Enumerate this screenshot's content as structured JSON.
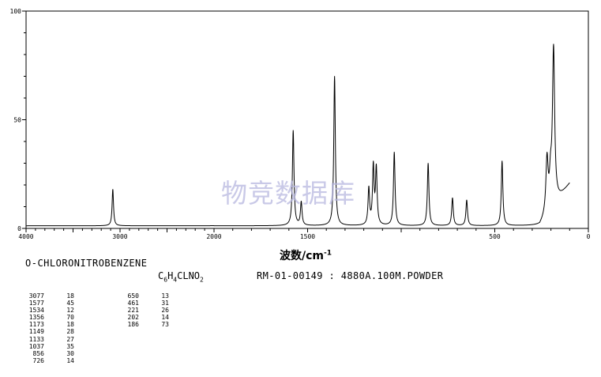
{
  "chart_data": {
    "type": "line",
    "xlim": [
      4000,
      0
    ],
    "ylim": [
      0,
      100
    ],
    "x_ticks": [
      "4000",
      "3000",
      "2000",
      "1500",
      "500",
      "0"
    ],
    "y_ticks": [
      "100",
      "50",
      "0"
    ],
    "xlabel": "波数/cm",
    "xlabel_sup": "-1",
    "baseline": 1.2,
    "peaks": [
      {
        "x": 3077,
        "y": 18
      },
      {
        "x": 1577,
        "y": 45
      },
      {
        "x": 1534,
        "y": 12
      },
      {
        "x": 1356,
        "y": 70
      },
      {
        "x": 1173,
        "y": 18
      },
      {
        "x": 1149,
        "y": 28
      },
      {
        "x": 1133,
        "y": 27
      },
      {
        "x": 1037,
        "y": 35
      },
      {
        "x": 856,
        "y": 30
      },
      {
        "x": 726,
        "y": 14
      },
      {
        "x": 650,
        "y": 13
      },
      {
        "x": 461,
        "y": 31
      },
      {
        "x": 221,
        "y": 26
      },
      {
        "x": 202,
        "y": 14
      },
      {
        "x": 186,
        "y": 73
      }
    ]
  },
  "watermark": "物竞数据库",
  "compound_name": "O-CHLORONITROBENZENE",
  "formula": {
    "c": "C",
    "c_n": "6",
    "h": "H",
    "h_n": "4",
    "rest": "CLNO",
    "o_n": "2"
  },
  "reference": "RM-01-00149 : 4880A.100M.POWDER",
  "peak_table_a": [
    {
      "wavenumber": "3077",
      "intensity": "18"
    },
    {
      "wavenumber": "1577",
      "intensity": "45"
    },
    {
      "wavenumber": "1534",
      "intensity": "12"
    },
    {
      "wavenumber": "1356",
      "intensity": "70"
    },
    {
      "wavenumber": "1173",
      "intensity": "18"
    },
    {
      "wavenumber": "1149",
      "intensity": "28"
    },
    {
      "wavenumber": "1133",
      "intensity": "27"
    },
    {
      "wavenumber": "1037",
      "intensity": "35"
    },
    {
      "wavenumber": "856",
      "intensity": "30"
    },
    {
      "wavenumber": "726",
      "intensity": "14"
    }
  ],
  "peak_table_b": [
    {
      "wavenumber": "650",
      "intensity": "13"
    },
    {
      "wavenumber": "461",
      "intensity": "31"
    },
    {
      "wavenumber": "221",
      "intensity": "26"
    },
    {
      "wavenumber": "202",
      "intensity": "14"
    },
    {
      "wavenumber": "186",
      "intensity": "73"
    }
  ]
}
